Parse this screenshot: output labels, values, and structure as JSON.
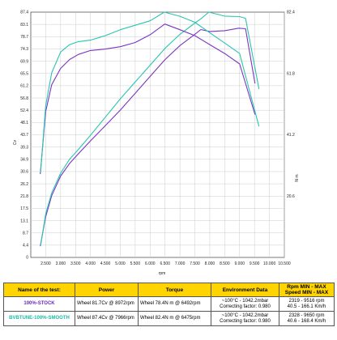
{
  "chart_data": {
    "type": "line",
    "xlabel": "rpm",
    "ylabel_left": "Cv",
    "ylabel_right": "N m",
    "xlim": [
      2000,
      10500
    ],
    "ylim_left": [
      0,
      87.4
    ],
    "ylim_right": [
      0,
      82.4
    ],
    "x_ticks": [
      "2.500",
      "3.000",
      "3.500",
      "4.000",
      "4.500",
      "5.000",
      "5.500",
      "6.000",
      "6.500",
      "7.000",
      "7.500",
      "8.000",
      "8.500",
      "9.000",
      "9.500",
      "10.000",
      "10.500"
    ],
    "y_left_ticks": [
      "0",
      "4.4",
      "8.7",
      "13.1",
      "17.5",
      "21.8",
      "26.2",
      "30.6",
      "34.9",
      "39.3",
      "43.7",
      "48.1",
      "52.4",
      "56.8",
      "61.2",
      "65.5",
      "69.9",
      "74.3",
      "78.7",
      "83.1",
      "87.4"
    ],
    "y_right_ticks": [
      "20.6",
      "41.2",
      "61.8",
      "82.4"
    ],
    "grid": true,
    "series": [
      {
        "name": "100%-STOCK",
        "color": "#7a35c4",
        "kind": "power",
        "x": [
          2319,
          2500,
          2700,
          3000,
          3300,
          3600,
          4000,
          4500,
          5000,
          5500,
          6000,
          6500,
          7000,
          7500,
          7700,
          8000,
          8500,
          8972,
          9200,
          9516
        ],
        "y": [
          4.0,
          14.5,
          22.0,
          29.0,
          33.5,
          37.0,
          41.5,
          47.0,
          52.5,
          58.5,
          64.5,
          70.5,
          75.5,
          79.5,
          81.2,
          80.5,
          80.8,
          81.7,
          81.5,
          62.0
        ]
      },
      {
        "name": "BVBTUNE-100%-SMOOTH",
        "color": "#29c4b0",
        "kind": "power",
        "x": [
          2328,
          2500,
          2700,
          3000,
          3300,
          3600,
          4000,
          4500,
          5000,
          5500,
          6000,
          6500,
          7000,
          7500,
          7700,
          7966,
          8500,
          9000,
          9200,
          9650
        ],
        "y": [
          4.2,
          15.5,
          23.0,
          30.0,
          35.0,
          38.5,
          43.5,
          50.0,
          56.5,
          62.5,
          68.5,
          74.5,
          79.5,
          83.5,
          85.0,
          87.4,
          86.0,
          85.8,
          85.2,
          60.0
        ]
      },
      {
        "name": "100%-STOCK",
        "color": "#7a35c4",
        "kind": "torque",
        "x": [
          2319,
          2500,
          2700,
          3000,
          3300,
          3600,
          4000,
          4500,
          5000,
          5500,
          6000,
          6492,
          7000,
          7500,
          8000,
          8500,
          9000,
          9516
        ],
        "y": [
          28.0,
          49.0,
          58.0,
          63.5,
          66.5,
          68.2,
          69.5,
          70.0,
          70.8,
          72.2,
          74.8,
          78.4,
          76.5,
          74.5,
          71.5,
          68.5,
          65.0,
          48.0
        ]
      },
      {
        "name": "BVBTUNE-100%-SMOOTH",
        "color": "#29c4b0",
        "kind": "torque",
        "x": [
          2328,
          2500,
          2700,
          3000,
          3300,
          3600,
          4000,
          4500,
          5000,
          5500,
          6000,
          6475,
          7000,
          7500,
          8000,
          8500,
          9000,
          9650
        ],
        "y": [
          28.5,
          51.0,
          62.0,
          69.0,
          71.5,
          72.5,
          73.0,
          74.5,
          76.5,
          78.0,
          79.5,
          82.4,
          81.0,
          79.0,
          75.5,
          72.0,
          68.5,
          44.0
        ]
      }
    ]
  },
  "table": {
    "headers": {
      "name": "Name of the test:",
      "power": "Power",
      "torque": "Torque",
      "env": "Environment Data",
      "rpm": "Rpm MIN - MAX",
      "speed": "Speed MIN - MAX"
    },
    "rows": [
      {
        "name": "100%-STOCK",
        "power": "Wheel 81.7Cv @ 8972rpm",
        "torque": "Wheel 78.4N m @ 6492rpm",
        "env1": "~100°C - 1042.2mbar",
        "env2": "Correcting factor: 0.980",
        "rpm": "2319 - 9516 rpm",
        "speed": "40.5 - 166.1 Km/h"
      },
      {
        "name": "BVBTUNE-100%-SMOOTH",
        "power": "Wheel 87.4Cv @ 7966rpm",
        "torque": "Wheel 82.4N m @ 6475rpm",
        "env1": "~100°C - 1042.2mbar",
        "env2": "Correcting factor: 0.980",
        "rpm": "2328 - 9650 rpm",
        "speed": "40.6 - 168.4 Km/h"
      }
    ]
  }
}
